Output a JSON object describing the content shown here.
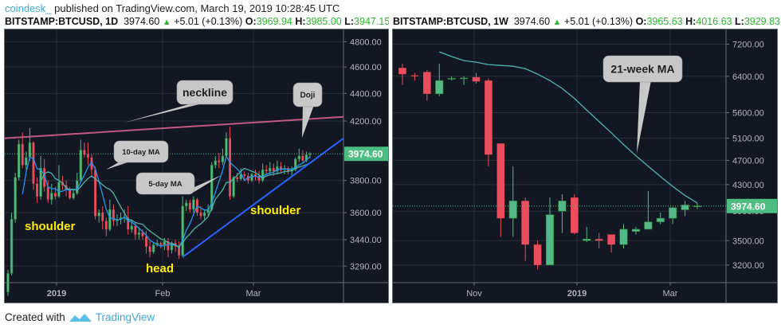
{
  "publish": {
    "author": "coindesk_",
    "text": " published on TradingView.com, March 19, 2019 10:28:45 UTC"
  },
  "footer": {
    "created_with": "Created with",
    "brand": "TradingView"
  },
  "colors": {
    "bg": "#131722",
    "up": "#53b987",
    "down": "#eb4d5c",
    "neckline": "#c0597f",
    "trendline": "#2962ff",
    "ma_fast": "#2196f3",
    "ma_slow": "#4db6ac",
    "label_bg": "#4dbd82",
    "callout_bg": "#c8c8c8",
    "annotation_yellow": "#ffee00"
  },
  "panels": [
    {
      "symbol": "BITSTAMP:BTCUSD, 1D",
      "last": "3974.60",
      "change": "+5.01 (+0.13%)",
      "open_label": "O:",
      "open": "3969.94",
      "high_label": "H:",
      "high": "3985.00",
      "low_label": "L:",
      "low": "3947.15"
    },
    {
      "symbol": "BITSTAMP:BTCUSD, 1W",
      "last": "3974.60",
      "change": "+5.01 (+0.13%)",
      "open_label": "O:",
      "open": "3965.63",
      "high_label": "H:",
      "high": "4016.63",
      "low_label": "L:",
      "low": "3929.83"
    }
  ],
  "chart_data": [
    {
      "type": "candlestick",
      "title": "BITSTAMP:BTCUSD, 1D",
      "scale": "log",
      "ylim": [
        3200,
        4900
      ],
      "y_ticks": [
        4800,
        4600,
        4400,
        4200,
        3800,
        3600,
        3440,
        3290
      ],
      "x_ticks": [
        {
          "label": "2019",
          "x": 70,
          "bold": true
        },
        {
          "label": "Feb",
          "x": 203
        },
        {
          "label": "Mar",
          "x": 317
        }
      ],
      "last_price_label": "3974.60",
      "last_price": 3974.6,
      "grid": true,
      "annotations": [
        {
          "type": "callout",
          "text": "neckline"
        },
        {
          "type": "callout",
          "text": "Doji"
        },
        {
          "type": "callout",
          "text": "10-day MA"
        },
        {
          "type": "callout",
          "text": "5-day MA"
        },
        {
          "type": "text",
          "text": "shoulder",
          "position": "left"
        },
        {
          "type": "text",
          "text": "head"
        },
        {
          "type": "text",
          "text": "shoulder",
          "position": "right"
        }
      ],
      "lines": [
        {
          "name": "neckline",
          "from": [
            5,
            4080
          ],
          "to": [
            430,
            4230
          ]
        },
        {
          "name": "trendline",
          "from": [
            228,
            3340
          ],
          "to": [
            430,
            4080
          ]
        }
      ],
      "candles": [
        [
          3150,
          3250,
          3130,
          3270
        ],
        [
          3250,
          3560,
          3240,
          3600
        ],
        [
          3560,
          3820,
          3540,
          3850
        ],
        [
          3820,
          4040,
          3800,
          4070
        ],
        [
          4040,
          3900,
          3880,
          4120
        ],
        [
          3900,
          3950,
          3870,
          3990
        ],
        [
          3950,
          4050,
          3930,
          4150
        ],
        [
          4050,
          3780,
          3740,
          4060
        ],
        [
          3780,
          3700,
          3660,
          3820
        ],
        [
          3700,
          3880,
          3680,
          3960
        ],
        [
          3880,
          3760,
          3730,
          3940
        ],
        [
          3760,
          3680,
          3660,
          3800
        ],
        [
          3680,
          3720,
          3650,
          3780
        ],
        [
          3720,
          3700,
          3680,
          3760
        ],
        [
          3700,
          3790,
          3690,
          3900
        ],
        [
          3790,
          3770,
          3740,
          3830
        ],
        [
          3770,
          3740,
          3700,
          3800
        ],
        [
          3740,
          3690,
          3680,
          3760
        ],
        [
          3690,
          3720,
          3680,
          3740
        ],
        [
          3720,
          3800,
          3710,
          3850
        ],
        [
          3800,
          4000,
          3790,
          4070
        ],
        [
          4000,
          3970,
          3950,
          4050
        ],
        [
          3970,
          3950,
          3900,
          4050
        ],
        [
          3950,
          3870,
          3820,
          3970
        ],
        [
          3870,
          3580,
          3560,
          3890
        ],
        [
          3580,
          3600,
          3540,
          3620
        ],
        [
          3600,
          3550,
          3500,
          3640
        ],
        [
          3550,
          3500,
          3460,
          3570
        ],
        [
          3500,
          3620,
          3490,
          3680
        ],
        [
          3620,
          3550,
          3520,
          3650
        ],
        [
          3550,
          3560,
          3520,
          3590
        ],
        [
          3560,
          3570,
          3530,
          3600
        ],
        [
          3570,
          3570,
          3540,
          3620
        ],
        [
          3570,
          3500,
          3470,
          3640
        ],
        [
          3500,
          3520,
          3480,
          3560
        ],
        [
          3520,
          3470,
          3440,
          3540
        ],
        [
          3470,
          3480,
          3440,
          3510
        ],
        [
          3480,
          3460,
          3440,
          3500
        ],
        [
          3460,
          3400,
          3360,
          3490
        ],
        [
          3400,
          3370,
          3340,
          3430
        ],
        [
          3370,
          3410,
          3360,
          3420
        ],
        [
          3410,
          3420,
          3400,
          3440
        ],
        [
          3420,
          3410,
          3390,
          3430
        ],
        [
          3410,
          3430,
          3380,
          3450
        ],
        [
          3430,
          3380,
          3340,
          3450
        ],
        [
          3380,
          3420,
          3360,
          3430
        ],
        [
          3420,
          3400,
          3370,
          3440
        ],
        [
          3400,
          3350,
          3330,
          3430
        ],
        [
          3350,
          3640,
          3340,
          3700
        ],
        [
          3640,
          3660,
          3610,
          3680
        ],
        [
          3660,
          3620,
          3600,
          3680
        ],
        [
          3620,
          3680,
          3600,
          3700
        ],
        [
          3680,
          3600,
          3580,
          3690
        ],
        [
          3600,
          3580,
          3560,
          3640
        ],
        [
          3580,
          3600,
          3560,
          3620
        ],
        [
          3600,
          3620,
          3580,
          3650
        ],
        [
          3620,
          3900,
          3610,
          3920
        ],
        [
          3900,
          3930,
          3880,
          3960
        ],
        [
          3930,
          3920,
          3880,
          3980
        ],
        [
          3920,
          3960,
          3900,
          4010
        ],
        [
          3960,
          4080,
          3950,
          4120
        ],
        [
          4080,
          3700,
          3680,
          4160
        ],
        [
          3700,
          3820,
          3690,
          3830
        ],
        [
          3820,
          3810,
          3790,
          3850
        ],
        [
          3810,
          3840,
          3800,
          3880
        ],
        [
          3840,
          3830,
          3800,
          3860
        ],
        [
          3830,
          3800,
          3780,
          3850
        ],
        [
          3800,
          3840,
          3790,
          3850
        ],
        [
          3840,
          3830,
          3800,
          3870
        ],
        [
          3830,
          3800,
          3780,
          3860
        ],
        [
          3800,
          3870,
          3790,
          3910
        ],
        [
          3870,
          3860,
          3840,
          3900
        ],
        [
          3860,
          3880,
          3840,
          3920
        ],
        [
          3880,
          3860,
          3830,
          3910
        ],
        [
          3860,
          3890,
          3840,
          3930
        ],
        [
          3890,
          3870,
          3850,
          3920
        ],
        [
          3870,
          3880,
          3840,
          3900
        ],
        [
          3880,
          3860,
          3840,
          3890
        ],
        [
          3860,
          3870,
          3820,
          3890
        ],
        [
          3870,
          3940,
          3860,
          3950
        ],
        [
          3940,
          3960,
          3920,
          4010
        ],
        [
          3960,
          3930,
          3910,
          4000
        ],
        [
          3930,
          3970,
          3920,
          3990
        ],
        [
          3970,
          3975,
          3947,
          3985
        ]
      ],
      "ma_5_day": "computed from candle closes (period 5)",
      "ma_10_day": "computed from candle closes (period 10)"
    },
    {
      "type": "candlestick",
      "title": "BITSTAMP:BTCUSD, 1W",
      "scale": "log",
      "ylim": [
        3000,
        7600
      ],
      "y_ticks": [
        7200,
        6400,
        5600,
        5100,
        4700,
        4300,
        3900,
        3500,
        3200
      ],
      "x_ticks": [
        {
          "label": "Nov",
          "x": 594
        },
        {
          "label": "2019",
          "x": 723,
          "bold": true
        },
        {
          "label": "Mar",
          "x": 840
        }
      ],
      "last_price_label": "3974.60",
      "last_price": 3974.6,
      "grid": true,
      "annotations": [
        {
          "type": "callout",
          "text": "21-week MA"
        }
      ],
      "candles": [
        [
          6600,
          6450,
          6200,
          6700
        ],
        [
          6420,
          6400,
          6300,
          6480
        ],
        [
          6500,
          6000,
          5850,
          6550
        ],
        [
          6000,
          6300,
          5950,
          6700
        ],
        [
          6350,
          6350,
          6300,
          6400
        ],
        [
          6350,
          6360,
          6200,
          6400
        ],
        [
          6380,
          6280,
          6230,
          6480
        ],
        [
          6300,
          4800,
          4600,
          6350
        ],
        [
          5000,
          3800,
          3550,
          5000
        ],
        [
          3800,
          4050,
          3550,
          4600
        ],
        [
          4050,
          3450,
          3250,
          4100
        ],
        [
          3450,
          3200,
          3150,
          3500
        ],
        [
          3200,
          3850,
          3200,
          4100
        ],
        [
          3900,
          4050,
          3600,
          4150
        ],
        [
          4100,
          3600,
          3580,
          4150
        ],
        [
          3500,
          3520,
          3480,
          3680
        ],
        [
          3520,
          3500,
          3400,
          3600
        ],
        [
          3580,
          3450,
          3350,
          3580
        ],
        [
          3450,
          3650,
          3400,
          3720
        ],
        [
          3620,
          3650,
          3580,
          3680
        ],
        [
          3650,
          3750,
          3650,
          4200
        ],
        [
          3750,
          3800,
          3720,
          3880
        ],
        [
          3800,
          3950,
          3720,
          3960
        ],
        [
          3920,
          3990,
          3830,
          4050
        ],
        [
          3970,
          3975,
          3930,
          4017
        ]
      ],
      "ma_21_week": [
        7000,
        6880,
        6780,
        6740,
        6680,
        6660,
        6640,
        6580,
        6450,
        6300,
        6120,
        5900,
        5650,
        5420,
        5200,
        4980,
        4780,
        4600,
        4430,
        4270,
        4130,
        4020
      ]
    }
  ]
}
